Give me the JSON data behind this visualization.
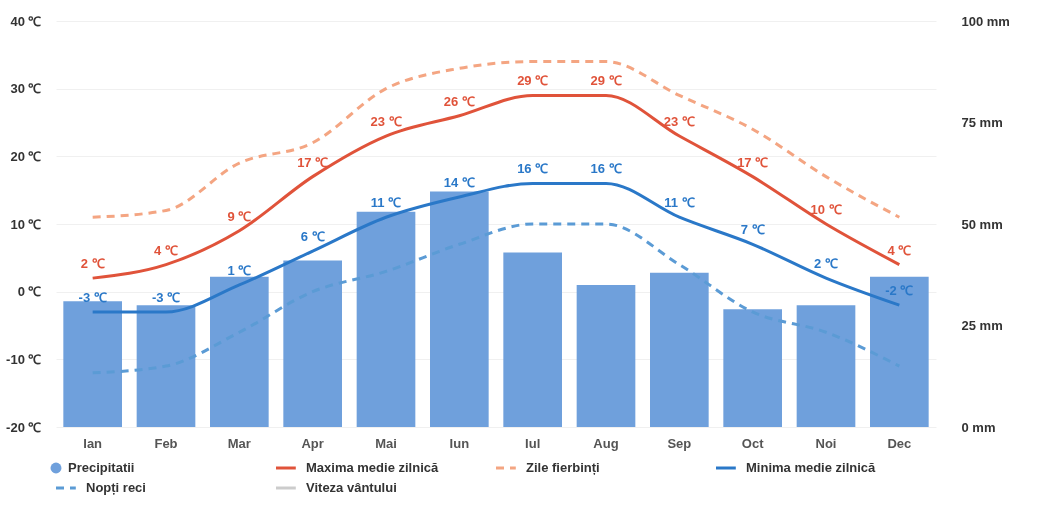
{
  "chart_data": {
    "type": "bar",
    "categories": [
      "Ian",
      "Feb",
      "Mar",
      "Apr",
      "Mai",
      "Iun",
      "Iul",
      "Aug",
      "Sep",
      "Oct",
      "Noi",
      "Dec"
    ],
    "series": [
      {
        "name": "Precipitatii",
        "axis": "y2",
        "color": "#6fa0dc",
        "values": [
          31,
          30,
          37,
          41,
          53,
          58,
          43,
          35,
          38,
          29,
          30,
          37
        ]
      },
      {
        "name": "Maxima medie zilnică",
        "type": "line",
        "color": "#e0533a",
        "values": [
          2,
          4,
          9,
          17,
          23,
          26,
          29,
          29,
          23,
          17,
          10,
          4
        ],
        "value_labels": [
          "2 ℃",
          "4 ℃",
          "9 ℃",
          "17 ℃",
          "23 ℃",
          "26 ℃",
          "29 ℃",
          "29 ℃",
          "23 ℃",
          "17 ℃",
          "10 ℃",
          "4 ℃"
        ]
      },
      {
        "name": "Zile fierbinți",
        "type": "line",
        "line_style": "dashed",
        "color": "#f4a582",
        "values": [
          11,
          12,
          19,
          22,
          30,
          33,
          34,
          34,
          29,
          24,
          17,
          11
        ]
      },
      {
        "name": "Minima medie zilnică",
        "type": "line",
        "color": "#2a78c8",
        "values": [
          -3,
          -3,
          1,
          6,
          11,
          14,
          16,
          16,
          11,
          7,
          2,
          -2
        ],
        "value_labels": [
          "-3 ℃",
          "-3 ℃",
          "1 ℃",
          "6 ℃",
          "11 ℃",
          "14 ℃",
          "16 ℃",
          "16 ℃",
          "11 ℃",
          "7 ℃",
          "2 ℃",
          "-2 ℃"
        ]
      },
      {
        "name": "Nopți reci",
        "type": "line",
        "line_style": "dashed",
        "color": "#5b9bd5",
        "values": [
          -12,
          -11,
          -6,
          0,
          3,
          7,
          10,
          10,
          4,
          -3,
          -6,
          -11
        ]
      },
      {
        "name": "Viteza vântului",
        "type": "line",
        "color": "#cccccc",
        "values": [
          null,
          null,
          null,
          null,
          null,
          null,
          null,
          null,
          null,
          null,
          null,
          null
        ]
      }
    ],
    "ylim": [
      -20,
      40
    ],
    "yticks": [
      {
        "value": -20,
        "label": "-20 ℃"
      },
      {
        "value": -10,
        "label": "-10 ℃"
      },
      {
        "value": 0,
        "label": "0 ℃"
      },
      {
        "value": 10,
        "label": "10 ℃"
      },
      {
        "value": 20,
        "label": "20 ℃"
      },
      {
        "value": 30,
        "label": "30 ℃"
      },
      {
        "value": 40,
        "label": "40 ℃"
      }
    ],
    "y2lim": [
      0,
      100
    ],
    "y2ticks": [
      {
        "value": 0,
        "label": "0 mm"
      },
      {
        "value": 25,
        "label": "25 mm"
      },
      {
        "value": 50,
        "label": "50 mm"
      },
      {
        "value": 75,
        "label": "75 mm"
      },
      {
        "value": 100,
        "label": "100 mm"
      }
    ],
    "grid": "y",
    "legend": "bottom"
  }
}
